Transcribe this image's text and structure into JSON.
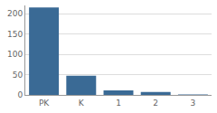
{
  "chart_data": {
    "type": "bar",
    "categories": [
      "PK",
      "K",
      "1",
      "2",
      "3"
    ],
    "values": [
      215,
      47,
      11,
      7,
      1
    ],
    "color": "#3a6a95",
    "ylim": [
      0,
      220
    ],
    "yticks": [
      0,
      50,
      100,
      150,
      200
    ],
    "grid": true
  }
}
